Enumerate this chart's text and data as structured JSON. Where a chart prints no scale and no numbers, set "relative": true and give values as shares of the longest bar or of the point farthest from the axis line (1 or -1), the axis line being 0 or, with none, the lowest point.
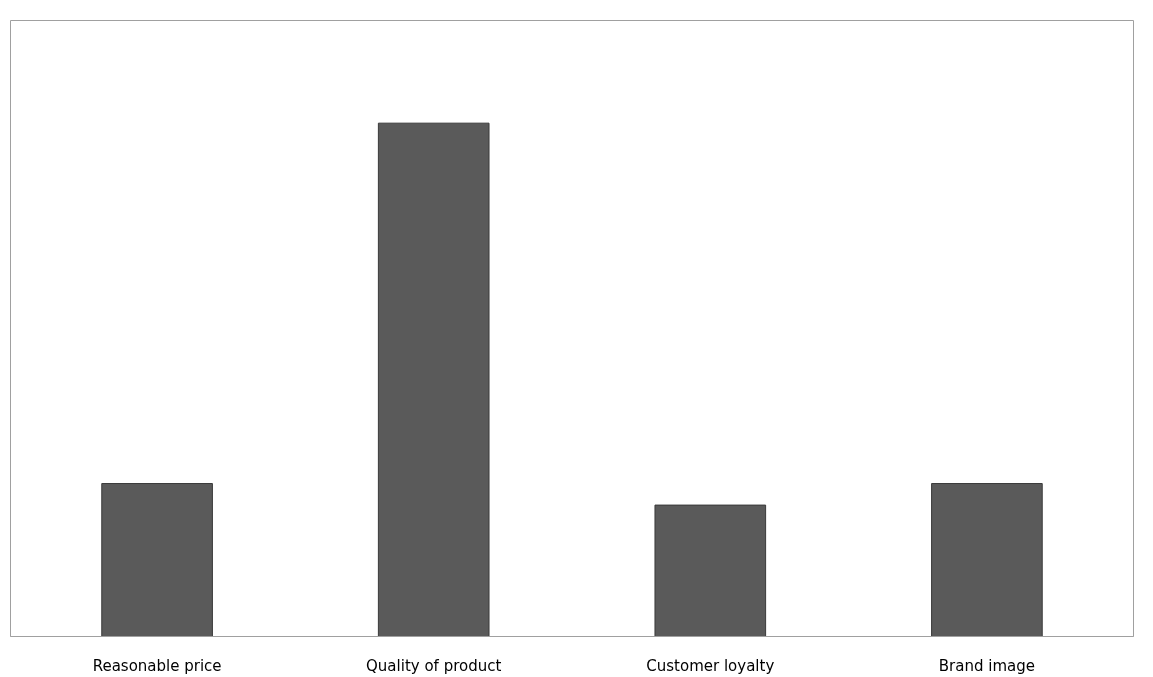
{
  "chart_data": {
    "type": "bar",
    "relative": true,
    "categories": [
      "Reasonable price",
      "Quality of product",
      "Customer loyalty",
      "Brand image"
    ],
    "values": [
      0.298,
      1,
      0.256,
      0.298
    ],
    "color": "#5a5a5a",
    "grid": false
  }
}
